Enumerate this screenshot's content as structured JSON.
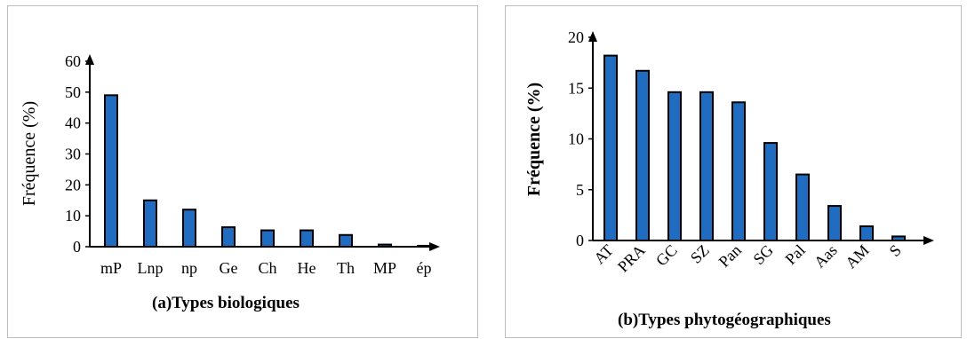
{
  "chart_data": [
    {
      "type": "bar",
      "caption": "(a)Types biologiques",
      "ylabel": "Fréquence (%)",
      "xlabel": "",
      "categories": [
        "mP",
        "Lnp",
        "np",
        "Ge",
        "Ch",
        "He",
        "Th",
        "MP",
        "ép"
      ],
      "values": [
        49,
        15,
        12,
        6.3,
        5.3,
        5.3,
        3.8,
        0.7,
        0.3
      ],
      "ylim": [
        0,
        60
      ],
      "yticks": [
        "0",
        "10",
        "20",
        "30",
        "40",
        "50",
        "60"
      ],
      "grid": false,
      "legend": "none",
      "bar_color": "#1f6cc0",
      "bar_edge_color": "#000000"
    },
    {
      "type": "bar",
      "caption": "(b)Types phytogéographiques",
      "ylabel": "Fréquence (%)",
      "xlabel": "",
      "categories": [
        "AT",
        "PRA",
        "GC",
        "SZ",
        "Pan",
        "SG",
        "Pal",
        "Aas",
        "AM",
        "S"
      ],
      "values": [
        18.2,
        16.7,
        14.6,
        14.6,
        13.6,
        9.6,
        6.5,
        3.4,
        1.4,
        0.4
      ],
      "ylim": [
        0,
        20
      ],
      "yticks": [
        "0",
        "5",
        "10",
        "15",
        "20"
      ],
      "grid": false,
      "legend": "none",
      "bar_color": "#1f6cc0",
      "bar_edge_color": "#000000"
    }
  ]
}
